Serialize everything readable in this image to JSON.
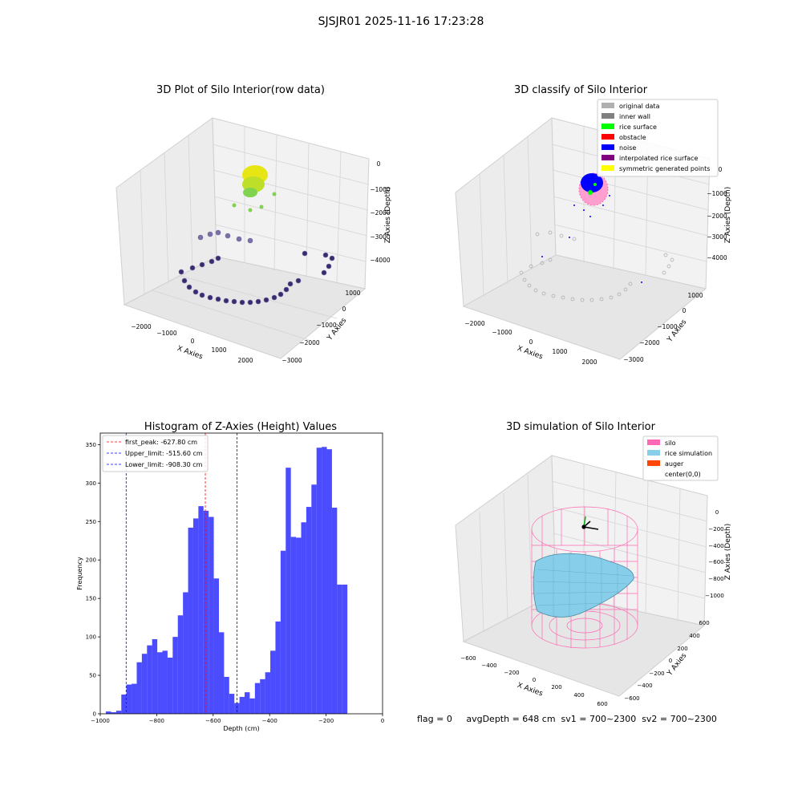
{
  "suptitle": "SJSJR01 2025-11-16 17:23:28",
  "panels": {
    "raw": {
      "title": "3D Plot of Silo Interior(row data)",
      "xlabel": "X Axies",
      "ylabel": "Y Axies",
      "zlabel": "Z Axies (Depth)",
      "x_ticks": [
        "−2000",
        "−1000",
        "0",
        "1000",
        "2000"
      ],
      "y_ticks": [
        "1000",
        "0",
        "−1000",
        "−2000",
        "−3000"
      ],
      "z_ticks": [
        "0",
        "−1000",
        "−2000",
        "−3000",
        "−4000"
      ]
    },
    "classify": {
      "title": "3D classify of Silo Interior",
      "xlabel": "X Axies",
      "ylabel": "Y Axies",
      "zlabel": "Z Axies (Depth)",
      "x_ticks": [
        "−2000",
        "−1000",
        "0",
        "1000",
        "2000"
      ],
      "y_ticks": [
        "1000",
        "0",
        "−1000",
        "−2000",
        "−3000"
      ],
      "z_ticks": [
        "0",
        "−1000",
        "−2000",
        "−3000",
        "−4000"
      ],
      "legend": [
        {
          "label": "original data",
          "color": "#b0b0b0"
        },
        {
          "label": "inner wall",
          "color": "#808080"
        },
        {
          "label": "rice surface",
          "color": "#00ff00"
        },
        {
          "label": "obstacle",
          "color": "#ff0000"
        },
        {
          "label": "noise",
          "color": "#0000ff"
        },
        {
          "label": "interpolated rice surface",
          "color": "#800080"
        },
        {
          "label": "symmetric generated points",
          "color": "#ffff00"
        }
      ]
    },
    "simulation": {
      "title": "3D simulation of Silo Interior",
      "xlabel": "X Axies",
      "ylabel": "Y Axies",
      "zlabel": "Z Axies (Depth)",
      "x_ticks": [
        "−600",
        "−400",
        "−200",
        "0",
        "200",
        "400",
        "600"
      ],
      "y_ticks": [
        "600",
        "400",
        "200",
        "0",
        "−200",
        "−400",
        "−600"
      ],
      "z_ticks": [
        "0",
        "−200",
        "−400",
        "−600",
        "−800",
        "−1000"
      ],
      "legend": [
        {
          "label": "silo",
          "color": "#ff69b4"
        },
        {
          "label": "rice simulation",
          "color": "#87ceeb"
        },
        {
          "label": "auger",
          "color": "#ff4500"
        },
        {
          "label": "center(0,0)",
          "color": "#ffffff"
        }
      ]
    }
  },
  "status_text": "flag = 0     avgDepth = 648 cm  sv1 = 700~2300  sv2 = 700~2300",
  "chart_data": {
    "type": "bar",
    "title": "Histogram of Z-Axies (Height) Values",
    "xlabel": "Depth (cm)",
    "ylabel": "Frequency",
    "xlim": [
      -1000,
      0
    ],
    "ylim": [
      0,
      365
    ],
    "xticks": [
      -1000,
      -800,
      -600,
      -400,
      -200,
      0
    ],
    "xtick_labels": [
      "−1000",
      "−800",
      "−600",
      "−400",
      "−200",
      "0"
    ],
    "yticks": [
      0,
      50,
      100,
      150,
      200,
      250,
      300,
      350
    ],
    "bin_start": -980,
    "bin_width": 18.2,
    "values": [
      3,
      2,
      4,
      25,
      38,
      39,
      67,
      78,
      89,
      97,
      80,
      82,
      73,
      100,
      128,
      158,
      242,
      254,
      270,
      264,
      256,
      176,
      106,
      48,
      26,
      14,
      22,
      28,
      20,
      40,
      45,
      54,
      82,
      120,
      212,
      320,
      230,
      229,
      249,
      269,
      298,
      346,
      347,
      344,
      268,
      168,
      168
    ],
    "bar_color": "#0000ff",
    "vlines": [
      {
        "label": "first_peak: -627.80 cm",
        "x": -627.8,
        "color": "#ff0000"
      },
      {
        "label": "Upper_limit: -515.60 cm",
        "x": -515.6,
        "color": "#0000ff"
      },
      {
        "label": "Lower_limit: -908.30 cm",
        "x": -908.3,
        "color": "#0000ff"
      }
    ],
    "legend_position": "top-left"
  }
}
